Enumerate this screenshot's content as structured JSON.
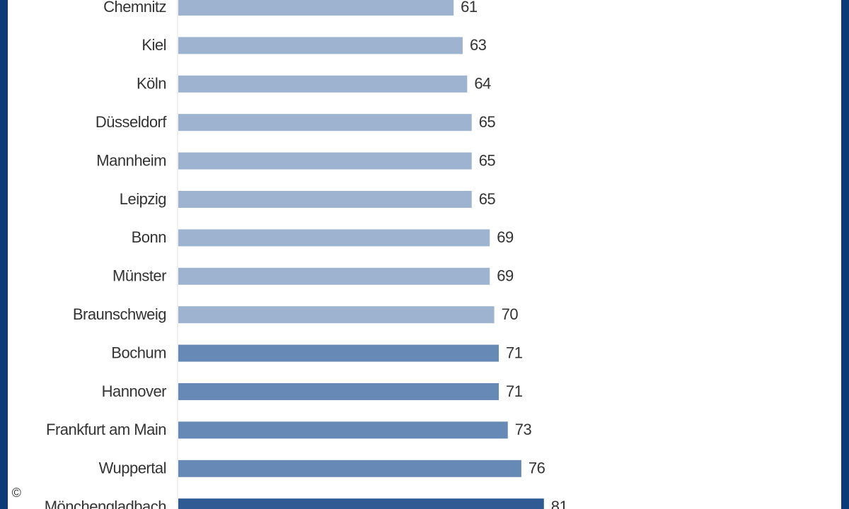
{
  "chart_data": {
    "type": "barh",
    "categories": [
      "Chemnitz",
      "Kiel",
      "Köln",
      "Düsseldorf",
      "Mannheim",
      "Leipzig",
      "Bonn",
      "Münster",
      "Braunschweig",
      "Bochum",
      "Hannover",
      "Frankfurt am Main",
      "Wuppertal",
      "Mönchengladbach"
    ],
    "values": [
      61,
      63,
      64,
      65,
      65,
      65,
      69,
      69,
      70,
      71,
      71,
      73,
      76,
      81
    ],
    "colors": [
      "#9db3cf",
      "#9db3cf",
      "#9db3cf",
      "#9db3cf",
      "#9db3cf",
      "#9db3cf",
      "#9db3cf",
      "#9db3cf",
      "#9db3cf",
      "#6689b5",
      "#6689b5",
      "#6689b5",
      "#6689b5",
      "#2f5a94"
    ]
  },
  "footer": {
    "copyright": "©"
  }
}
